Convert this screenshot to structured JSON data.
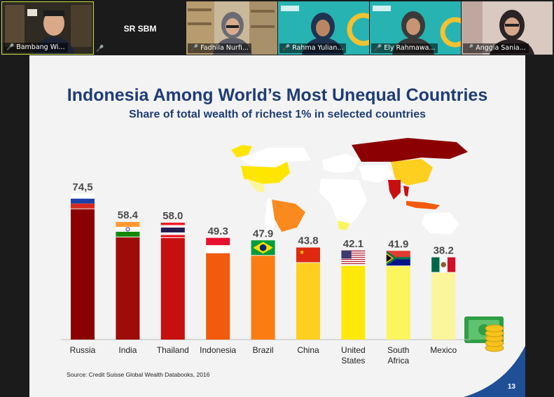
{
  "participants": [
    {
      "name": "Bambang Wi...",
      "muted": true
    },
    {
      "name": "SR SBM",
      "muted": true
    },
    {
      "name": "Fadhila Nurfi...",
      "muted": true
    },
    {
      "name": "Rahma Yulian...",
      "muted": true
    },
    {
      "name": "Ely Rahmawa...",
      "muted": true
    },
    {
      "name": "Anggia Sania...",
      "muted": true
    }
  ],
  "slide": {
    "title": "Indonesia Among World’s Most Unequal Countries",
    "subtitle": "Share of total wealth of richest 1% in selected countries",
    "source": "Source: Credit Suisse Global Wealth Databooks, 2016",
    "page_number": "13"
  },
  "chart_data": {
    "type": "bar",
    "categories": [
      "Russia",
      "India",
      "Thailand",
      "Indonesia",
      "Brazil",
      "China",
      "United States",
      "South Africa",
      "Mexico"
    ],
    "values": [
      74.5,
      58.4,
      58.0,
      49.3,
      47.9,
      43.8,
      42.1,
      41.9,
      38.2
    ],
    "value_labels": [
      "74,5",
      "58.4",
      "58.0",
      "49.3",
      "47.9",
      "43.8",
      "42.1",
      "41.9",
      "38.2"
    ],
    "category_label_lines": [
      [
        "Russia"
      ],
      [
        "India"
      ],
      [
        "Thailand"
      ],
      [
        "Indonesia"
      ],
      [
        "Brazil"
      ],
      [
        "China"
      ],
      [
        "United",
        "States"
      ],
      [
        "South",
        "Africa"
      ],
      [
        "Mexico"
      ]
    ],
    "bar_colors": [
      "#8b0000",
      "#9d0b0b",
      "#c80f0f",
      "#f25a0e",
      "#fb7d12",
      "#ffcf1f",
      "#ffe80a",
      "#fbf55e",
      "#fbf59c"
    ],
    "flags": [
      "russia-flag-icon",
      "india-flag-icon",
      "thailand-flag-icon",
      "indonesia-flag-icon",
      "brazil-flag-icon",
      "china-flag-icon",
      "usa-flag-icon",
      "south-africa-flag-icon",
      "mexico-flag-icon"
    ],
    "ylim": [
      0,
      80
    ],
    "grid": false,
    "legend": false
  },
  "icons": {
    "map": "world-map-icon",
    "money": "money-coins-icon"
  }
}
